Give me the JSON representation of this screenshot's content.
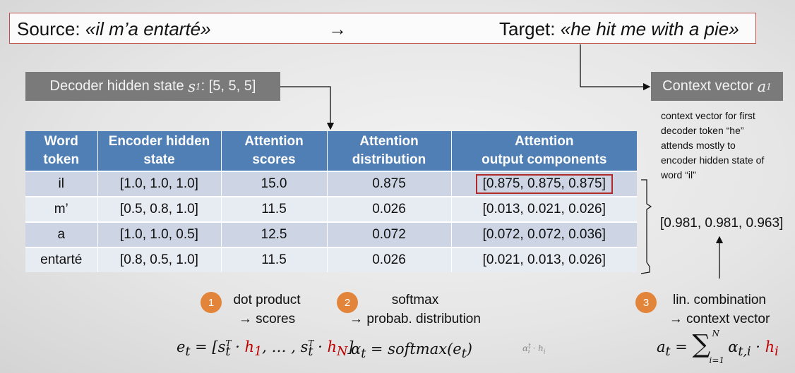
{
  "source": {
    "label": "Source:",
    "sentence": "«il m’a entarté»"
  },
  "arrow": "→",
  "target": {
    "label": "Target:",
    "sentence": "«he hit me with a pie»"
  },
  "decoder": {
    "label": "Decoder hidden state",
    "symbol": "s",
    "sub": "1",
    "value": ": [5, 5, 5]"
  },
  "context": {
    "label": "Context vector",
    "symbol": "a",
    "sub": "1"
  },
  "note": "context vector for first decoder token “he” attends mostly to encoder hidden state of word “il”",
  "table": {
    "headers": [
      [
        "Word",
        "token"
      ],
      [
        "Encoder hidden",
        "state"
      ],
      [
        "Attention",
        "scores"
      ],
      [
        "Attention",
        "distribution"
      ],
      [
        "Attention",
        "output components"
      ]
    ],
    "rows": [
      [
        "il",
        "[1.0, 1.0, 1.0]",
        "15.0",
        "0.875",
        "[0.875, 0.875, 0.875]"
      ],
      [
        "m’",
        "[0.5, 0.8, 1.0]",
        "11.5",
        "0.026",
        "[0.013, 0.021, 0.026]"
      ],
      [
        "a",
        "[1.0, 1.0, 0.5]",
        "12.5",
        "0.072",
        "[0.072, 0.072, 0.036]"
      ],
      [
        "entarté",
        "[0.8, 0.5, 1.0]",
        "11.5",
        "0.026",
        "[0.021, 0.013, 0.026]"
      ]
    ]
  },
  "result": "[0.981, 0.981, 0.963]",
  "steps": [
    {
      "num": "1",
      "line1": "dot product",
      "line2": "→ scores"
    },
    {
      "num": "2",
      "line1": "softmax",
      "line2": "→ probab. distribution"
    },
    {
      "num": "3",
      "line1": "lin. combination",
      "line2": "→ context vector"
    }
  ],
  "formulas": {
    "f1": {
      "a": "e",
      "b": "t",
      "c": " = [",
      "d": "s",
      "e": "t",
      "f": "T",
      "g": " · ",
      "h": "h",
      "i": "1",
      "j": ", … , ",
      "k": "s",
      "l": "t",
      "m": "T",
      "n": " · ",
      "o": "h",
      "p": "N",
      "q": "]"
    },
    "f2": {
      "a": "α",
      "b": "t",
      "c": " = softmax(",
      "d": "e",
      "e": "t",
      "f": ")"
    },
    "f3": {
      "a": "a",
      "b": "t",
      "c": " = ",
      "d": "∑",
      "e": "N",
      "f": "i=1",
      "g": "α",
      "h": "t,i",
      "i": " · ",
      "j": "h",
      "k": "i"
    },
    "faint": {
      "a": "α",
      "b": "i",
      "c": "t",
      "d": " · h",
      "e": "i"
    }
  }
}
